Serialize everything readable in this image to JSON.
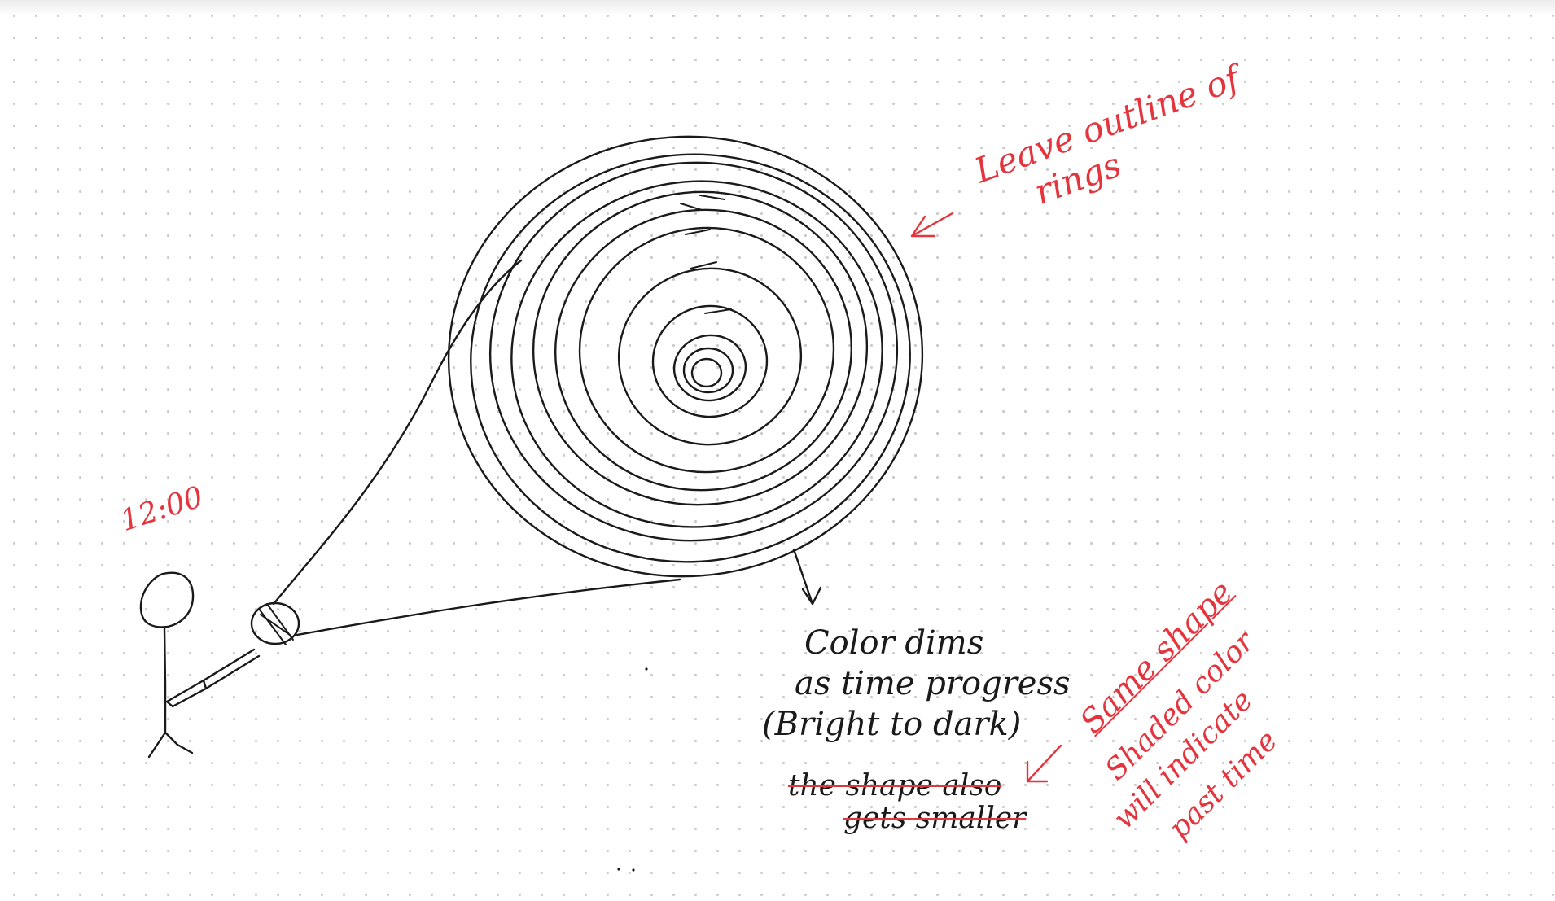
{
  "annotations": {
    "time_label": "12:00",
    "rings_note": [
      "Leave outline of",
      "rings"
    ],
    "dim_note": [
      "Color dims",
      "as time progress",
      "(Bright to dark)"
    ],
    "struck_note": [
      "the shape also",
      "gets smaller"
    ],
    "shape_note": [
      "Same shape",
      "Shaded color",
      "will indicate",
      "past time"
    ]
  },
  "colors": {
    "ink": "#1a1a1a",
    "annotation": "#e4353e",
    "grid_dot": "#c9c9c9"
  }
}
